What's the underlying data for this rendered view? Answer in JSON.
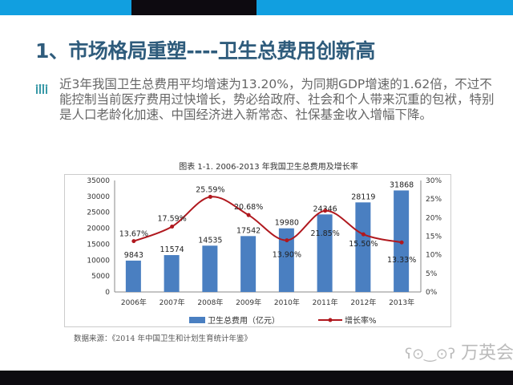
{
  "header": {
    "title": "1、市场格局重塑----卫生总费用创新高"
  },
  "bullet": {
    "icon": "people-bars-icon",
    "text": "近3年我国卫生总费用平均增速为13.20%，为同期GDP增速的1.62倍，不过不能控制当前医疗费用过快增长，势必给政府、社会和个人带来沉重的包袱，特别是人口老龄化加速、中国经济进入新常态、社保基金收入增幅下降。"
  },
  "chart_data": {
    "type": "bar",
    "title": "图表 1-1. 2006-2013 年我国卫生总费用及增长率",
    "categories": [
      "2006年",
      "2007年",
      "2008年",
      "2009年",
      "2010年",
      "2011年",
      "2012年",
      "2013年"
    ],
    "series": [
      {
        "name": "卫生总费用（亿元）",
        "type": "bar",
        "axis": "left",
        "values": [
          9843,
          11574,
          14535,
          17542,
          19980,
          24346,
          28119,
          31868
        ],
        "labels": [
          "9843",
          "11574",
          "14535",
          "17542",
          "19980",
          "24346",
          "28119",
          "31868"
        ],
        "color": "#4a7fc1"
      },
      {
        "name": "增长率%",
        "type": "line",
        "axis": "right",
        "values": [
          13.67,
          17.59,
          25.59,
          20.68,
          13.9,
          21.85,
          15.5,
          13.33
        ],
        "labels": [
          "13.67%",
          "17.59%",
          "25.59%",
          "20.68%",
          "13.90%",
          "21.85%",
          "15.50%",
          "13.33%"
        ],
        "color": "#b0181e"
      }
    ],
    "ylim_left": [
      0,
      35000
    ],
    "yticks_left": [
      "0",
      "5000",
      "10000",
      "15000",
      "20000",
      "25000",
      "30000",
      "35000"
    ],
    "ylim_right": [
      0,
      30
    ],
    "yticks_right": [
      "0%",
      "5%",
      "10%",
      "15%",
      "20%",
      "25%",
      "30%"
    ],
    "grid": false,
    "legend": "bottom"
  },
  "source": "数据来源：《2014 年中国卫生和计划生育统计年鉴》",
  "watermark": "万英会"
}
